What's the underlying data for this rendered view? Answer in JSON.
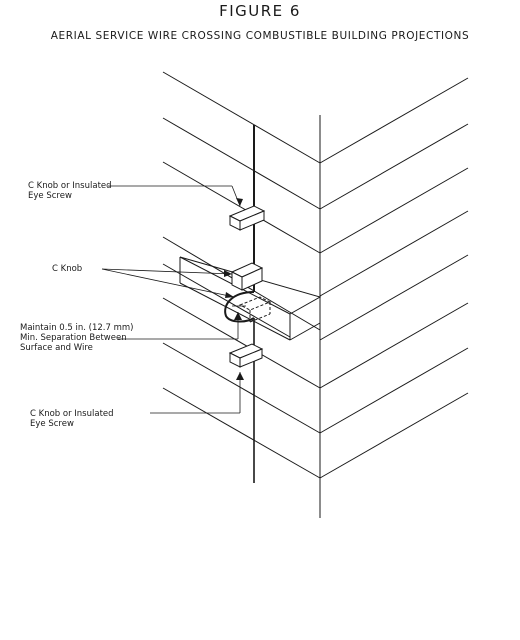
{
  "figure": {
    "title": "FIGURE 6",
    "subtitle": "AERIAL SERVICE WIRE CROSSING COMBUSTIBLE BUILDING PROJECTIONS"
  },
  "labels": {
    "knob_top": [
      "C Knob or Insulated",
      "Eye Screw"
    ],
    "knob_mid": "C Knob",
    "separation": [
      "Maintain 0.5 in. (12.7 mm)",
      "Min. Separation Between",
      "Surface and Wire"
    ],
    "knob_bottom": [
      "C Knob or Insulated",
      "Eye Screw"
    ]
  }
}
